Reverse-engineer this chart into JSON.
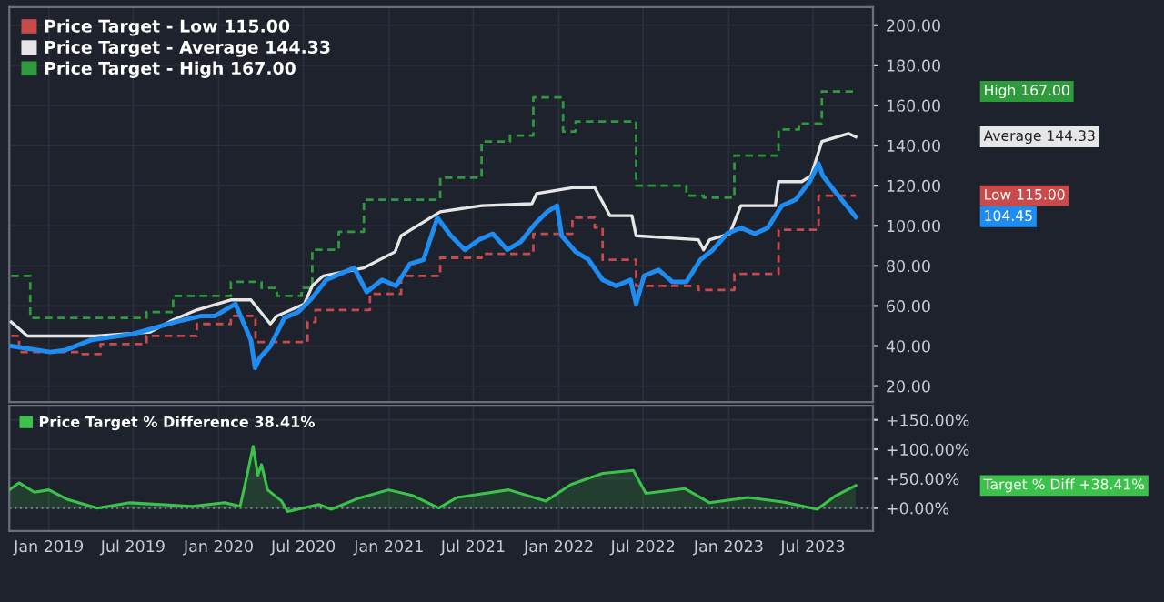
{
  "chart_data": [
    {
      "type": "line",
      "xlim": [
        "2018-10-08",
        "2023-11-07"
      ],
      "ylim": [
        12,
        209
      ],
      "xticks": [
        {
          "value": "2019-01",
          "label": null
        },
        {
          "value": "2019-07",
          "label": null
        },
        {
          "value": "2020-01",
          "label": null
        },
        {
          "value": "2020-07",
          "label": null
        },
        {
          "value": "2021-01",
          "label": null
        },
        {
          "value": "2021-07",
          "label": null
        },
        {
          "value": "2022-01",
          "label": null
        },
        {
          "value": "2022-07",
          "label": null
        },
        {
          "value": "2023-01",
          "label": null
        },
        {
          "value": "2023-07",
          "label": null
        }
      ],
      "yticks": [
        {
          "value": 20,
          "label": "20.00"
        },
        {
          "value": 40,
          "label": "40.00"
        },
        {
          "value": 60,
          "label": "60.00"
        },
        {
          "value": 80,
          "label": "80.00"
        },
        {
          "value": 100,
          "label": "100.00"
        },
        {
          "value": 120,
          "label": "120.00"
        },
        {
          "value": 140,
          "label": "140.00"
        },
        {
          "value": 160,
          "label": "160.00"
        },
        {
          "value": 180,
          "label": "180.00"
        },
        {
          "value": 200,
          "label": "200.00"
        }
      ],
      "tick_labels": "y",
      "grid": true,
      "legend": "top left",
      "series": [
        {
          "name": "Price Target - Low 115.00",
          "type": "step",
          "line_style": "dashed",
          "color": "#c94a4a",
          "x": [
            "2018-10-12",
            "2018-10-29",
            "2019-03-03",
            "2019-04-22",
            "2019-07-30",
            "2019-11-15",
            "2020-01-27",
            "2020-03-20",
            "2020-07-10",
            "2020-07-27",
            "2020-11-21",
            "2021-01-27",
            "2021-04-21",
            "2021-07-19",
            "2021-11-07",
            "2022-01-30",
            "2022-03-19",
            "2022-04-05",
            "2022-06-16",
            "2022-10-28",
            "2023-01-13",
            "2023-04-18",
            "2023-07-13",
            "2023-10-01"
          ],
          "values": [
            45,
            37,
            36,
            41,
            45,
            51,
            55,
            42,
            52,
            58,
            66,
            75,
            84,
            86,
            96,
            104,
            99,
            83,
            70,
            68,
            76,
            98,
            115,
            115
          ]
        },
        {
          "name": "Price Target - Average 144.33",
          "type": "line",
          "line_style": "solid",
          "color": "#e6e6e6",
          "x": [
            "2018-10-12",
            "2018-11-16",
            "2019-04-12",
            "2019-08-07",
            "2019-09-25",
            "2019-11-15",
            "2020-01-27",
            "2020-03-10",
            "2020-04-21",
            "2020-05-05",
            "2020-07-03",
            "2020-07-20",
            "2020-08-13",
            "2020-11-08",
            "2021-01-14",
            "2021-01-27",
            "2021-04-21",
            "2021-07-19",
            "2021-11-04",
            "2021-11-14",
            "2022-01-30",
            "2022-03-19",
            "2022-04-21",
            "2022-06-07",
            "2022-06-16",
            "2022-10-28",
            "2022-11-08",
            "2022-11-21",
            "2023-01-03",
            "2023-01-27",
            "2023-04-11",
            "2023-04-18",
            "2023-06-07",
            "2023-06-27",
            "2023-07-20",
            "2023-09-15",
            "2023-10-01"
          ],
          "values": [
            52,
            45,
            45,
            47,
            53,
            58,
            63,
            63,
            51,
            55,
            61,
            70,
            75,
            79,
            87,
            95,
            107,
            110,
            111,
            116,
            119,
            119,
            105,
            105,
            95,
            93,
            88,
            93,
            96,
            110,
            110,
            122,
            122,
            125,
            142,
            146,
            144.33
          ]
        },
        {
          "name": "Price Target - High 167.00",
          "type": "step",
          "line_style": "dashed",
          "color": "#2f9a3c",
          "x": [
            "2018-10-12",
            "2018-11-22",
            "2019-07-30",
            "2019-09-25",
            "2020-01-27",
            "2020-04-02",
            "2020-05-05",
            "2020-06-27",
            "2020-07-20",
            "2020-09-15",
            "2020-11-08",
            "2021-04-21",
            "2021-07-19",
            "2021-09-18",
            "2021-11-07",
            "2022-01-10",
            "2022-02-06",
            "2022-06-16",
            "2022-10-02",
            "2022-11-08",
            "2023-01-13",
            "2023-04-18",
            "2023-06-01",
            "2023-07-20",
            "2023-10-01"
          ],
          "values": [
            75,
            54,
            57,
            65,
            72,
            69,
            65,
            69,
            88,
            97,
            113,
            124,
            142,
            145,
            164,
            147,
            152,
            120,
            115,
            114,
            135,
            148,
            151,
            167,
            167
          ]
        },
        {
          "type": "line",
          "line_style": "solid",
          "color": "#1e8cf0",
          "x": [
            "2018-10-12",
            "2019-01-04",
            "2019-02-06",
            "2019-04-02",
            "2019-07-01",
            "2019-09-29",
            "2019-11-25",
            "2019-12-24",
            "2020-02-06",
            "2020-03-10",
            "2020-03-19",
            "2020-03-29",
            "2020-04-21",
            "2020-05-21",
            "2020-06-20",
            "2020-07-20",
            "2020-08-19",
            "2020-09-18",
            "2020-10-18",
            "2020-11-14",
            "2020-12-17",
            "2021-01-16",
            "2021-02-15",
            "2021-03-16",
            "2021-04-15",
            "2021-05-14",
            "2021-06-13",
            "2021-07-13",
            "2021-08-12",
            "2021-09-12",
            "2021-10-11",
            "2021-11-11",
            "2021-12-07",
            "2021-12-28",
            "2022-01-07",
            "2022-02-06",
            "2022-03-06",
            "2022-04-05",
            "2022-05-04",
            "2022-06-04",
            "2022-06-16",
            "2022-07-03",
            "2022-08-03",
            "2022-09-02",
            "2022-10-02",
            "2022-11-01",
            "2022-11-28",
            "2022-12-28",
            "2023-01-27",
            "2023-02-26",
            "2023-03-26",
            "2023-04-25",
            "2023-05-25",
            "2023-06-24",
            "2023-07-13",
            "2023-07-22",
            "2023-08-21",
            "2023-10-01"
          ],
          "values": [
            40,
            37,
            38,
            43,
            46,
            52,
            55,
            55,
            61,
            43,
            29,
            34,
            40,
            54,
            57,
            64,
            73,
            76,
            79,
            67,
            73,
            70,
            81,
            83,
            104,
            95,
            88,
            93,
            96,
            88,
            92,
            101,
            107,
            110,
            95,
            87,
            83,
            73,
            70,
            73,
            61,
            75,
            78,
            72,
            72,
            83,
            88,
            96,
            99,
            96,
            99,
            110,
            113,
            122,
            131,
            125,
            116,
            104.45
          ]
        }
      ],
      "annotations": [
        "Low 115.00",
        "Average 144.33",
        "High 167.00",
        "104.45"
      ]
    },
    {
      "type": "area",
      "xlim": [
        "2018-10-08",
        "2023-11-07"
      ],
      "ylim": [
        -39,
        174
      ],
      "xticks": [
        {
          "value": "2019-01",
          "label": "Jan 2019"
        },
        {
          "value": "2019-07",
          "label": "Jul 2019"
        },
        {
          "value": "2020-01",
          "label": "Jan 2020"
        },
        {
          "value": "2020-07",
          "label": "Jul 2020"
        },
        {
          "value": "2021-01",
          "label": "Jan 2021"
        },
        {
          "value": "2021-07",
          "label": "Jul 2021"
        },
        {
          "value": "2022-01",
          "label": "Jan 2022"
        },
        {
          "value": "2022-07",
          "label": "Jul 2022"
        },
        {
          "value": "2023-01",
          "label": "Jan 2023"
        },
        {
          "value": "2023-07",
          "label": "Jul 2023"
        }
      ],
      "yticks": [
        {
          "value": 0,
          "label": "+0.00%"
        },
        {
          "value": 50,
          "label": "+50.00%"
        },
        {
          "value": 100,
          "label": "+100.00%"
        },
        {
          "value": 150,
          "label": "+150.00%"
        }
      ],
      "grid": true,
      "legend": "top left",
      "ref_lines": [
        {
          "axis": "y",
          "value": 0,
          "color": "#7a7f8a",
          "line_style": "dotted"
        }
      ],
      "series": [
        {
          "name": "Price Target % Difference 38.41%",
          "color": "#3cc24a",
          "x": [
            "2018-10-08",
            "2018-10-29",
            "2018-12-01",
            "2019-01-01",
            "2019-02-09",
            "2019-04-15",
            "2019-06-24",
            "2019-11-05",
            "2020-01-14",
            "2020-02-16",
            "2020-02-29",
            "2020-03-15",
            "2020-03-25",
            "2020-04-02",
            "2020-04-15",
            "2020-05-15",
            "2020-05-28",
            "2020-08-03",
            "2020-08-30",
            "2020-10-25",
            "2020-12-31",
            "2021-02-22",
            "2021-04-18",
            "2021-05-27",
            "2021-09-15",
            "2021-12-04",
            "2022-01-27",
            "2022-04-05",
            "2022-06-10",
            "2022-07-07",
            "2022-09-29",
            "2022-11-21",
            "2023-02-12",
            "2023-05-01",
            "2023-07-10",
            "2023-08-19",
            "2023-10-01"
          ],
          "values": [
            31,
            43,
            27,
            31,
            15,
            0,
            9,
            3,
            9,
            3,
            49,
            105,
            56,
            74,
            31,
            12,
            -6,
            6,
            -2,
            16,
            31,
            21,
            0,
            18,
            31,
            12,
            40,
            59,
            64,
            25,
            33,
            9,
            18,
            10,
            -2,
            21,
            38.41
          ]
        }
      ],
      "annotations": [
        "Target % Diff +38.41%"
      ]
    }
  ]
}
